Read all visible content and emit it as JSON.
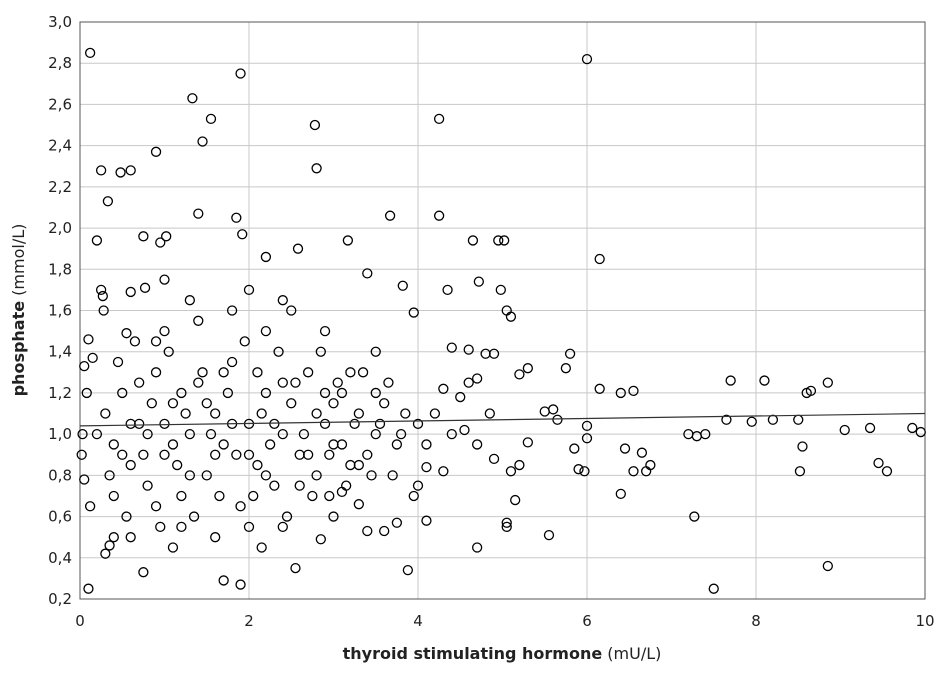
{
  "chart_data": {
    "type": "scatter",
    "x_label": "thyroid stimulating hormone",
    "x_unit": "(mU/L)",
    "y_label": "phosphate",
    "y_unit": "(mmol/L)",
    "color": "#000000",
    "grid": true,
    "xlim": [
      0,
      10
    ],
    "xticks": [
      0,
      2,
      4,
      6,
      8,
      10
    ],
    "ylim": [
      0.2,
      3.0
    ],
    "yticks": [
      {
        "value": 0.2,
        "label": "0,2"
      },
      {
        "value": 0.4,
        "label": "0,4"
      },
      {
        "value": 0.6,
        "label": "0,6"
      },
      {
        "value": 0.8,
        "label": "0,8"
      },
      {
        "value": 1.0,
        "label": "1,0"
      },
      {
        "value": 1.2,
        "label": "1,2"
      },
      {
        "value": 1.4,
        "label": "1,4"
      },
      {
        "value": 1.6,
        "label": "1,6"
      },
      {
        "value": 1.8,
        "label": "1,8"
      },
      {
        "value": 2.0,
        "label": "2,0"
      },
      {
        "value": 2.2,
        "label": "2,2"
      },
      {
        "value": 2.4,
        "label": "2,4"
      },
      {
        "value": 2.6,
        "label": "2,6"
      },
      {
        "value": 2.8,
        "label": "2,8"
      },
      {
        "value": 3.0,
        "label": "3,0"
      }
    ],
    "trendline": {
      "x": [
        0,
        10
      ],
      "y": [
        1.04,
        1.1
      ]
    },
    "x": [
      0.12,
      6.0,
      1.9,
      1.33,
      1.55,
      4.25,
      2.78,
      1.45,
      0.9,
      0.25,
      0.6,
      0.48,
      2.8,
      0.33,
      1.4,
      1.85,
      3.67,
      4.25,
      0.2,
      0.75,
      1.02,
      0.95,
      1.92,
      2.58,
      3.17,
      4.65,
      4.95,
      5.02,
      6.15,
      2.2,
      3.4,
      3.82,
      4.35,
      4.72,
      4.98,
      5.05,
      5.1,
      3.95,
      0.25,
      0.27,
      0.6,
      0.77,
      1.0,
      0.28,
      0.55,
      0.1,
      0.15,
      0.05,
      0.08,
      0.03,
      0.02,
      0.05,
      0.12,
      0.1,
      0.3,
      0.35,
      0.4,
      0.75,
      1.7,
      1.9,
      2.15,
      2.55,
      2.85,
      3.88,
      4.7,
      5.55,
      7.5,
      8.85,
      7.27,
      6.4,
      5.15,
      4.1,
      3.75,
      5.05,
      5.05,
      5.8,
      5.75,
      6.15,
      6.55,
      6.4,
      5.85,
      5.9,
      5.97,
      6.0,
      6.0,
      6.45,
      6.55,
      6.7,
      6.75,
      6.65,
      7.2,
      7.3,
      7.4,
      7.65,
      7.7,
      8.1,
      7.95,
      8.2,
      8.5,
      8.52,
      8.55,
      8.6,
      8.65,
      8.85,
      9.05,
      9.35,
      9.45,
      9.55,
      9.85,
      9.95,
      5.3,
      5.2,
      5.5,
      5.6,
      5.65,
      5.3,
      5.2,
      5.1,
      4.8,
      4.9,
      4.4,
      4.6,
      4.3,
      4.5,
      4.6,
      4.7,
      4.85,
      4.4,
      4.55,
      4.7,
      4.9,
      4.3,
      4.1,
      4.0,
      3.95,
      3.6,
      3.4,
      3.3,
      3.1,
      2.95,
      0.3,
      0.4,
      0.5,
      0.6,
      0.7,
      0.8,
      0.9,
      1.0,
      1.1,
      1.2,
      1.3,
      1.4,
      1.5,
      1.6,
      1.7,
      1.8,
      1.9,
      2.0,
      2.1,
      2.2,
      2.3,
      2.4,
      2.5,
      2.6,
      2.7,
      2.8,
      2.9,
      3.0,
      3.1,
      3.2,
      3.3,
      3.4,
      3.5,
      3.6,
      3.7,
      0.35,
      0.45,
      0.55,
      0.65,
      0.75,
      0.85,
      0.95,
      1.05,
      1.15,
      1.25,
      1.35,
      1.45,
      1.55,
      1.65,
      1.75,
      1.85,
      1.95,
      2.05,
      2.15,
      2.25,
      2.35,
      2.45,
      2.55,
      2.65,
      2.75,
      2.85,
      2.95,
      3.05,
      3.15,
      3.25,
      3.35,
      3.45,
      3.55,
      3.65,
      3.75,
      3.85,
      0.2,
      0.5,
      0.8,
      1.0,
      1.2,
      1.3,
      1.6,
      1.7,
      2.0,
      2.1,
      2.3,
      2.6,
      2.8,
      3.0,
      3.2,
      0.4,
      0.6,
      0.9,
      1.1,
      1.5,
      1.8,
      2.2,
      2.4,
      2.7,
      2.9,
      3.1,
      3.3,
      3.5,
      3.8,
      4.0,
      4.2,
      4.1,
      0.7,
      1.0,
      1.4,
      1.8,
      2.2,
      2.5,
      2.9,
      0.6,
      1.1,
      1.6,
      2.0,
      2.4,
      3.0,
      1.3,
      2.0,
      2.4,
      1.2,
      0.9,
      3.5
    ],
    "values": [
      2.85,
      2.82,
      2.75,
      2.63,
      2.53,
      2.53,
      2.5,
      2.42,
      2.37,
      2.28,
      2.28,
      2.27,
      2.29,
      2.13,
      2.07,
      2.05,
      2.06,
      2.06,
      1.94,
      1.96,
      1.96,
      1.93,
      1.97,
      1.9,
      1.94,
      1.94,
      1.94,
      1.94,
      1.85,
      1.86,
      1.78,
      1.72,
      1.7,
      1.74,
      1.7,
      1.6,
      1.57,
      1.59,
      1.7,
      1.67,
      1.69,
      1.71,
      1.75,
      1.6,
      1.49,
      1.46,
      1.37,
      1.33,
      1.2,
      1.0,
      0.9,
      0.78,
      0.65,
      0.25,
      0.42,
      0.46,
      0.5,
      0.33,
      0.29,
      0.27,
      0.45,
      0.35,
      0.49,
      0.34,
      0.45,
      0.51,
      0.25,
      0.36,
      0.6,
      0.71,
      0.68,
      0.58,
      0.57,
      0.57,
      0.55,
      1.39,
      1.32,
      1.22,
      1.21,
      1.2,
      0.93,
      0.83,
      0.82,
      1.04,
      0.98,
      0.93,
      0.82,
      0.82,
      0.85,
      0.91,
      1.0,
      0.99,
      1.0,
      1.07,
      1.26,
      1.26,
      1.06,
      1.07,
      1.07,
      0.82,
      0.94,
      1.2,
      1.21,
      1.25,
      1.02,
      1.03,
      0.86,
      0.82,
      1.03,
      1.01,
      1.32,
      1.29,
      1.11,
      1.12,
      1.07,
      0.96,
      0.85,
      0.82,
      1.39,
      1.39,
      1.42,
      1.41,
      1.22,
      1.18,
      1.25,
      1.27,
      1.1,
      1.0,
      1.02,
      0.95,
      0.88,
      0.82,
      0.84,
      0.75,
      0.7,
      0.53,
      0.53,
      0.66,
      0.72,
      0.7,
      1.1,
      0.95,
      1.2,
      0.85,
      1.05,
      0.75,
      1.3,
      0.9,
      1.15,
      0.7,
      1.0,
      1.25,
      0.8,
      1.1,
      0.95,
      1.35,
      0.65,
      1.05,
      0.85,
      1.2,
      0.75,
      1.0,
      1.15,
      0.9,
      1.3,
      0.8,
      1.05,
      0.95,
      1.2,
      0.85,
      1.1,
      0.9,
      1.0,
      1.15,
      0.8,
      0.8,
      1.35,
      0.6,
      1.45,
      0.9,
      1.15,
      0.55,
      1.4,
      0.85,
      1.1,
      0.6,
      1.3,
      1.0,
      0.7,
      1.2,
      0.9,
      1.45,
      0.7,
      1.1,
      0.95,
      1.4,
      0.6,
      1.25,
      1.0,
      0.7,
      1.4,
      0.9,
      1.25,
      0.75,
      1.05,
      1.3,
      0.8,
      1.05,
      1.25,
      0.95,
      1.1,
      1.0,
      0.9,
      1.0,
      1.05,
      1.2,
      0.8,
      0.9,
      1.3,
      0.9,
      1.3,
      1.05,
      0.75,
      1.1,
      1.15,
      1.3,
      0.7,
      1.05,
      0.65,
      0.95,
      1.15,
      1.05,
      0.8,
      1.25,
      0.9,
      1.2,
      0.95,
      0.85,
      1.2,
      1.0,
      1.05,
      1.1,
      0.95,
      1.25,
      1.5,
      1.55,
      1.6,
      1.5,
      1.6,
      1.5,
      0.5,
      0.45,
      0.5,
      0.55,
      0.55,
      0.6,
      1.65,
      1.7,
      1.65,
      0.55,
      1.45,
      1.4
    ]
  }
}
